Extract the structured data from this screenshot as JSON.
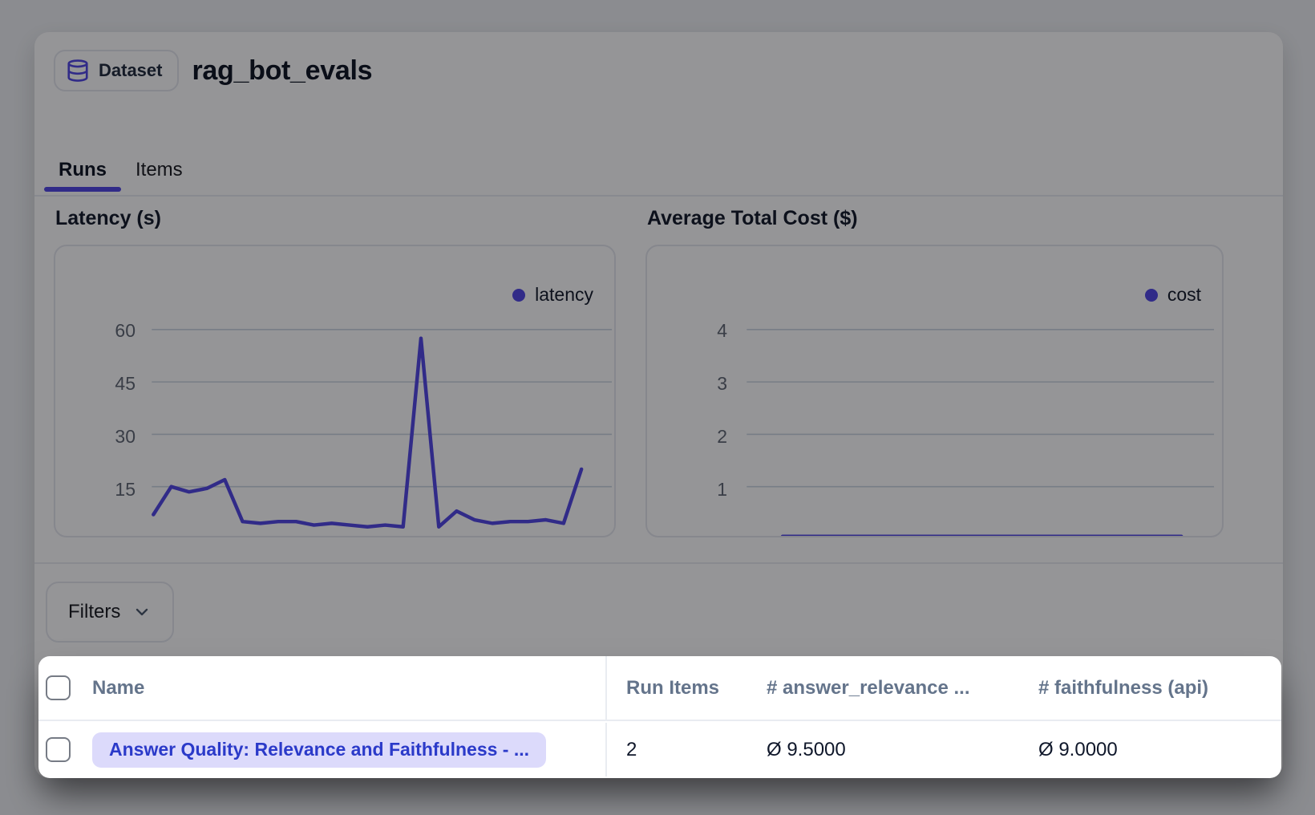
{
  "header": {
    "badge_label": "Dataset",
    "badge_icon": "database-icon",
    "title": "rag_bot_evals"
  },
  "tabs": [
    {
      "label": "Runs",
      "active": true
    },
    {
      "label": "Items",
      "active": false
    }
  ],
  "chart_data": [
    {
      "type": "line",
      "title": "Latency (s)",
      "series": [
        {
          "name": "latency",
          "color": "#4f46e5",
          "values": [
            7,
            15,
            13.5,
            14.5,
            17,
            5,
            4.5,
            5,
            5,
            4,
            4.5,
            4,
            3.5,
            4,
            3.5,
            57.5,
            3.5,
            8,
            5.5,
            4.5,
            5,
            5,
            5.5,
            4.5,
            20
          ]
        }
      ],
      "yticks": [
        15,
        30,
        45,
        60
      ],
      "ylim": [
        0,
        80
      ],
      "xticks": [],
      "grid": true,
      "legend_position": "top-right"
    },
    {
      "type": "line",
      "title": "Average Total Cost ($)",
      "series": [
        {
          "name": "cost",
          "color": "#4f46e5",
          "values": [
            0.05,
            0.05,
            0.05,
            0.05,
            0.05,
            0.05,
            0.05,
            0.05,
            0.05,
            0.05,
            0.05,
            0.05,
            0.05,
            0.05,
            0.05,
            0.05,
            0.05,
            0.05,
            0.05,
            0.05,
            0.05,
            0.05,
            0.05,
            0.05,
            0.05
          ]
        }
      ],
      "yticks": [
        1,
        2,
        3,
        4
      ],
      "ylim": [
        0,
        5.5
      ],
      "xticks": [],
      "grid": true,
      "legend_position": "top-right"
    }
  ],
  "filters": {
    "label": "Filters",
    "icon": "chevron-down-icon"
  },
  "table": {
    "columns": [
      "Name",
      "Run Items",
      "# answer_relevance ...",
      "# faithfulness (api)"
    ],
    "rows": [
      {
        "name": "Answer Quality: Relevance and Faithfulness - ...",
        "run_items": "2",
        "answer_relevance": "Ø 9.5000",
        "faithfulness": "Ø 9.0000"
      }
    ]
  },
  "colors": {
    "accent_indigo": "#4f46e5",
    "link_blue": "#2b3ac9",
    "link_pill_bg": "#dcdafb",
    "table_header_text": "#64748b",
    "body_text": "#0f172a",
    "muted_text": "#5f6673",
    "card_border": "#e4e7ee",
    "gridline": "#cbd5e1",
    "dim_overlay": "rgba(10,10,13,0.43)"
  }
}
